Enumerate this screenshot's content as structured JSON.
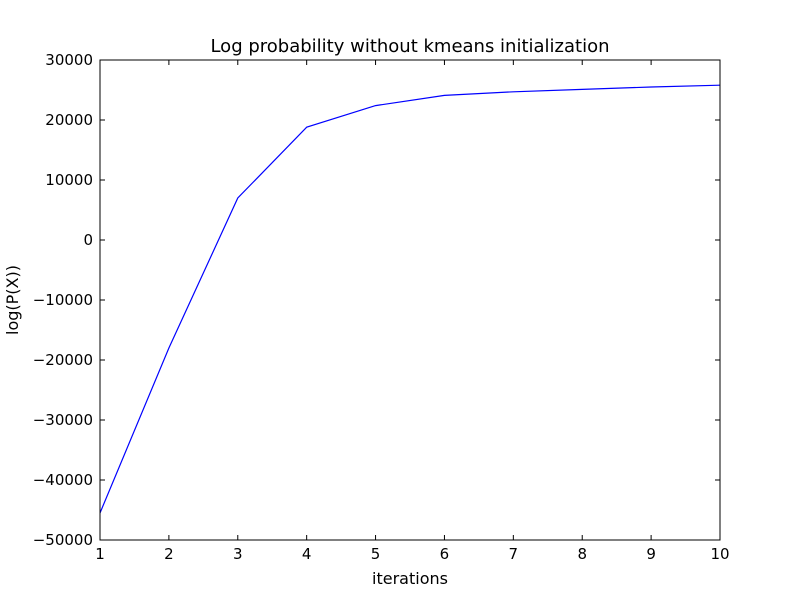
{
  "chart_data": {
    "type": "line",
    "title": "Log probability without kmeans initialization",
    "xlabel": "iterations",
    "ylabel": "log(P(X))",
    "xlim": [
      1,
      10
    ],
    "ylim": [
      -50000,
      30000
    ],
    "x_ticks": [
      1,
      2,
      3,
      4,
      5,
      6,
      7,
      8,
      9,
      10
    ],
    "x_tick_labels": [
      "1",
      "2",
      "3",
      "4",
      "5",
      "6",
      "7",
      "8",
      "9",
      "10"
    ],
    "y_ticks": [
      -50000,
      -40000,
      -30000,
      -20000,
      -10000,
      0,
      10000,
      20000,
      30000
    ],
    "y_tick_labels": [
      "−50000",
      "−40000",
      "−30000",
      "−20000",
      "−10000",
      "0",
      "10000",
      "20000",
      "30000"
    ],
    "grid": false,
    "legend": "none",
    "series": [
      {
        "color": "#0000ff",
        "x": [
          1,
          2,
          3,
          4,
          5,
          6,
          7,
          8,
          9,
          10
        ],
        "y": [
          -45500,
          -18000,
          7000,
          18800,
          22400,
          24100,
          24700,
          25100,
          25500,
          25800
        ]
      }
    ]
  }
}
